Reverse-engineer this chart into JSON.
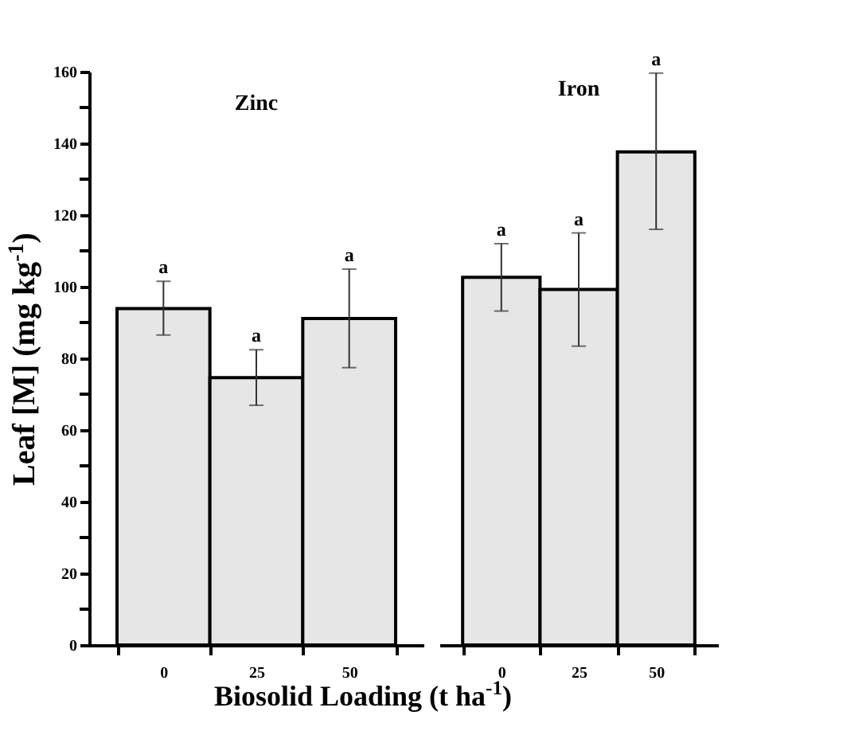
{
  "chart_data": [
    {
      "type": "bar",
      "title": "Zinc",
      "xlabel": "Biosolid Loading (t ha$^{-1}$)",
      "ylabel": "Leaf [M] (mg kg$^{-1}$)",
      "categories": [
        "0",
        "25",
        "50"
      ],
      "values": [
        93.9,
        74.6,
        91.1
      ],
      "color": "#e6e6e6",
      "errors": [
        [
          86.5,
          101.5
        ],
        [
          66.9,
          82.4
        ],
        [
          77.4,
          104.9
        ]
      ],
      "ylim": [
        0,
        160
      ],
      "yticks": [
        0,
        {
          "value": 10,
          "label": null
        },
        20,
        {
          "value": 30,
          "label": null
        },
        40,
        {
          "value": 50,
          "label": null
        },
        60,
        {
          "value": 70,
          "label": null
        },
        80,
        {
          "value": 90,
          "label": null
        },
        100,
        {
          "value": 110,
          "label": null
        },
        120,
        {
          "value": 130,
          "label": null
        },
        140,
        {
          "value": 150,
          "label": null
        },
        160
      ],
      "annotations": [
        {
          "text": "a",
          "x": "0",
          "y": 101.5
        },
        {
          "text": "a",
          "x": "25",
          "y": 82.4
        },
        {
          "text": "a",
          "x": "50",
          "y": 104.9
        }
      ]
    },
    {
      "type": "bar",
      "title": "Iron",
      "categories": [
        "0",
        "25",
        "50"
      ],
      "values": [
        102.6,
        99.2,
        137.6
      ],
      "color": "#e6e6e6",
      "errors": [
        [
          93.2,
          112
        ],
        [
          83.4,
          115
        ],
        [
          116,
          159.6
        ]
      ],
      "ylim": [
        0,
        160
      ],
      "tick_labels": "x",
      "annotations": [
        {
          "text": "a",
          "x": "0",
          "y": 112
        },
        {
          "text": "a",
          "x": "25",
          "y": 115
        },
        {
          "text": "a",
          "x": "50",
          "y": 159.6
        }
      ]
    }
  ]
}
